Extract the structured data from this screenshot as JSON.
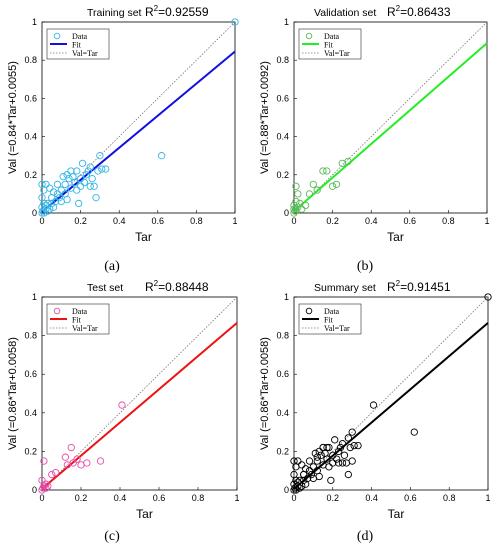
{
  "chart_data": [
    {
      "type": "scatter",
      "title": "Training set",
      "r2_label": "R",
      "r2_sup": "2",
      "r2_value": "=0.92559",
      "ylabel": "Val (=0.84*Tar+0.0055)",
      "xlabel": "Tar",
      "caption": "(a)",
      "color": "#33b5e5",
      "fit_color": "#1010e0",
      "fit": {
        "slope": 0.84,
        "intercept": 0.0055
      },
      "xlim": [
        0,
        1
      ],
      "ylim": [
        0,
        1
      ],
      "xticks": [
        "0",
        "0.2",
        "0.4",
        "0.6",
        "0.8",
        "1"
      ],
      "yticks": [
        "0",
        "0.2",
        "0.4",
        "0.6",
        "0.8",
        "1"
      ],
      "legend": [
        "Data",
        "Fit",
        "Val=Tar"
      ],
      "points": [
        [
          0,
          0
        ],
        [
          0.005,
          0.01
        ],
        [
          0.01,
          0
        ],
        [
          0.02,
          0.02
        ],
        [
          0,
          0.03
        ],
        [
          0.01,
          0.05
        ],
        [
          0.03,
          0.01
        ],
        [
          0.02,
          0.04
        ],
        [
          0,
          0.08
        ],
        [
          0.01,
          0.12
        ],
        [
          0.02,
          0.15
        ],
        [
          0,
          0.15
        ],
        [
          0.04,
          0.02
        ],
        [
          0.05,
          0.05
        ],
        [
          0.06,
          0.03
        ],
        [
          0.05,
          0.08
        ],
        [
          0.07,
          0.06
        ],
        [
          0.08,
          0.1
        ],
        [
          0.09,
          0.08
        ],
        [
          0.1,
          0.12
        ],
        [
          0.1,
          0.06
        ],
        [
          0.12,
          0.15
        ],
        [
          0.12,
          0.1
        ],
        [
          0.13,
          0.2
        ],
        [
          0.14,
          0.18
        ],
        [
          0.15,
          0.13
        ],
        [
          0.15,
          0.22
        ],
        [
          0.17,
          0.16
        ],
        [
          0.18,
          0.12
        ],
        [
          0.18,
          0.22
        ],
        [
          0.2,
          0.14
        ],
        [
          0.2,
          0.18
        ],
        [
          0.22,
          0.16
        ],
        [
          0.23,
          0.2
        ],
        [
          0.25,
          0.14
        ],
        [
          0.25,
          0.24
        ],
        [
          0.26,
          0.18
        ],
        [
          0.27,
          0.14
        ],
        [
          0.28,
          0.08
        ],
        [
          0.29,
          0.22
        ],
        [
          0.3,
          0.3
        ],
        [
          0.31,
          0.23
        ],
        [
          0.33,
          0.23
        ],
        [
          0.08,
          0.15
        ],
        [
          0.11,
          0.19
        ],
        [
          0.16,
          0.19
        ],
        [
          0.21,
          0.26
        ],
        [
          0.24,
          0.22
        ],
        [
          0.62,
          0.3
        ],
        [
          1.0,
          1.0
        ],
        [
          0.03,
          0.05
        ],
        [
          0.06,
          0.11
        ],
        [
          0.04,
          0.13
        ],
        [
          0.13,
          0.07
        ],
        [
          0.19,
          0.05
        ]
      ]
    },
    {
      "type": "scatter",
      "title": "Validation set",
      "r2_label": "R",
      "r2_sup": "2",
      "r2_value": "=0.86433",
      "ylabel": "Val (=0.88*Tar+0.0092)",
      "xlabel": "Tar",
      "caption": "(b)",
      "color": "#5cb85c",
      "fit_color": "#22ee22",
      "fit": {
        "slope": 0.88,
        "intercept": 0.0092
      },
      "xlim": [
        0,
        1
      ],
      "ylim": [
        0,
        1
      ],
      "xticks": [
        "0",
        "0.2",
        "0.4",
        "0.6",
        "0.8",
        "1"
      ],
      "yticks": [
        "0",
        "0.2",
        "0.4",
        "0.6",
        "0.8",
        "1"
      ],
      "legend": [
        "Data",
        "Fit",
        "Val=Tar"
      ],
      "points": [
        [
          0,
          0
        ],
        [
          0.005,
          0.01
        ],
        [
          0.01,
          0.02
        ],
        [
          0,
          0.04
        ],
        [
          0.01,
          0.06
        ],
        [
          0.02,
          0.03
        ],
        [
          0.03,
          0.05
        ],
        [
          0.02,
          0.1
        ],
        [
          0.01,
          0.14
        ],
        [
          0,
          0.02
        ],
        [
          0.04,
          0.02
        ],
        [
          0.08,
          0.1
        ],
        [
          0.1,
          0.15
        ],
        [
          0.12,
          0.12
        ],
        [
          0.15,
          0.22
        ],
        [
          0.17,
          0.22
        ],
        [
          0.2,
          0.14
        ],
        [
          0.22,
          0.15
        ],
        [
          0.25,
          0.26
        ],
        [
          0.28,
          0.27
        ],
        [
          0.06,
          0.04
        ]
      ]
    },
    {
      "type": "scatter",
      "title": "Test set",
      "r2_label": "R",
      "r2_sup": "2",
      "r2_value": "=0.88448",
      "ylabel": "Val (=0.86*Tar+0.0058)",
      "xlabel": "Tar",
      "caption": "(c)",
      "color": "#e84ba8",
      "fit_color": "#ee1111",
      "fit": {
        "slope": 0.86,
        "intercept": 0.0058
      },
      "xlim": [
        0,
        1
      ],
      "ylim": [
        0,
        1
      ],
      "xticks": [
        "0",
        "0.2",
        "0.4",
        "0.6",
        "0.8",
        "1"
      ],
      "yticks": [
        "0",
        "0.2",
        "0.4",
        "0.6",
        "0.8",
        "1"
      ],
      "legend": [
        "Data",
        "Fit",
        "Val=Tar"
      ],
      "points": [
        [
          0,
          0
        ],
        [
          0.005,
          0.01
        ],
        [
          0.01,
          0.02
        ],
        [
          0.02,
          0.03
        ],
        [
          0,
          0.05
        ],
        [
          0.03,
          0.02
        ],
        [
          0.01,
          0.15
        ],
        [
          0.05,
          0.08
        ],
        [
          0.07,
          0.09
        ],
        [
          0.12,
          0.17
        ],
        [
          0.13,
          0.13
        ],
        [
          0.15,
          0.22
        ],
        [
          0.16,
          0.14
        ],
        [
          0.18,
          0.16
        ],
        [
          0.2,
          0.13
        ],
        [
          0.23,
          0.14
        ],
        [
          0.3,
          0.15
        ],
        [
          0.41,
          0.44
        ],
        [
          0.02,
          0.01
        ]
      ]
    },
    {
      "type": "scatter",
      "title": "Summary set",
      "r2_label": "R",
      "r2_sup": "2",
      "r2_value": "=0.91451",
      "ylabel": "Val (=0.86*Tar+0.0058)",
      "xlabel": "Tar",
      "caption": "(d)",
      "color": "#000000",
      "fit_color": "#000000",
      "fit": {
        "slope": 0.86,
        "intercept": 0.0058
      },
      "xlim": [
        0,
        1
      ],
      "ylim": [
        0,
        1
      ],
      "xticks": [
        "0",
        "0.2",
        "0.4",
        "0.6",
        "0.8",
        "1"
      ],
      "yticks": [
        "0",
        "0.2",
        "0.4",
        "0.6",
        "0.8",
        "1"
      ],
      "legend": [
        "Data",
        "Fit",
        "Val=Tar"
      ],
      "points": [
        [
          0,
          0
        ],
        [
          0.005,
          0.01
        ],
        [
          0.01,
          0
        ],
        [
          0.02,
          0.02
        ],
        [
          0,
          0.03
        ],
        [
          0.01,
          0.05
        ],
        [
          0.03,
          0.01
        ],
        [
          0.02,
          0.04
        ],
        [
          0,
          0.08
        ],
        [
          0.01,
          0.12
        ],
        [
          0.02,
          0.15
        ],
        [
          0,
          0.15
        ],
        [
          0.04,
          0.02
        ],
        [
          0.05,
          0.05
        ],
        [
          0.06,
          0.03
        ],
        [
          0.05,
          0.08
        ],
        [
          0.07,
          0.06
        ],
        [
          0.08,
          0.1
        ],
        [
          0.09,
          0.08
        ],
        [
          0.1,
          0.12
        ],
        [
          0.1,
          0.06
        ],
        [
          0.12,
          0.15
        ],
        [
          0.12,
          0.1
        ],
        [
          0.13,
          0.2
        ],
        [
          0.14,
          0.18
        ],
        [
          0.15,
          0.13
        ],
        [
          0.15,
          0.22
        ],
        [
          0.17,
          0.16
        ],
        [
          0.18,
          0.12
        ],
        [
          0.18,
          0.22
        ],
        [
          0.2,
          0.14
        ],
        [
          0.2,
          0.18
        ],
        [
          0.22,
          0.16
        ],
        [
          0.23,
          0.2
        ],
        [
          0.25,
          0.14
        ],
        [
          0.25,
          0.24
        ],
        [
          0.26,
          0.18
        ],
        [
          0.27,
          0.14
        ],
        [
          0.28,
          0.08
        ],
        [
          0.29,
          0.22
        ],
        [
          0.3,
          0.3
        ],
        [
          0.31,
          0.23
        ],
        [
          0.33,
          0.23
        ],
        [
          0.08,
          0.15
        ],
        [
          0.11,
          0.19
        ],
        [
          0.16,
          0.19
        ],
        [
          0.21,
          0.26
        ],
        [
          0.24,
          0.22
        ],
        [
          0.62,
          0.3
        ],
        [
          1.0,
          1.0
        ],
        [
          0.03,
          0.05
        ],
        [
          0.06,
          0.11
        ],
        [
          0.04,
          0.13
        ],
        [
          0.13,
          0.07
        ],
        [
          0.19,
          0.05
        ],
        [
          0.15,
          0.22
        ],
        [
          0.17,
          0.22
        ],
        [
          0.28,
          0.27
        ],
        [
          0.41,
          0.44
        ],
        [
          0.23,
          0.14
        ],
        [
          0.3,
          0.15
        ],
        [
          0.05,
          0.08
        ],
        [
          0.12,
          0.17
        ]
      ]
    }
  ]
}
